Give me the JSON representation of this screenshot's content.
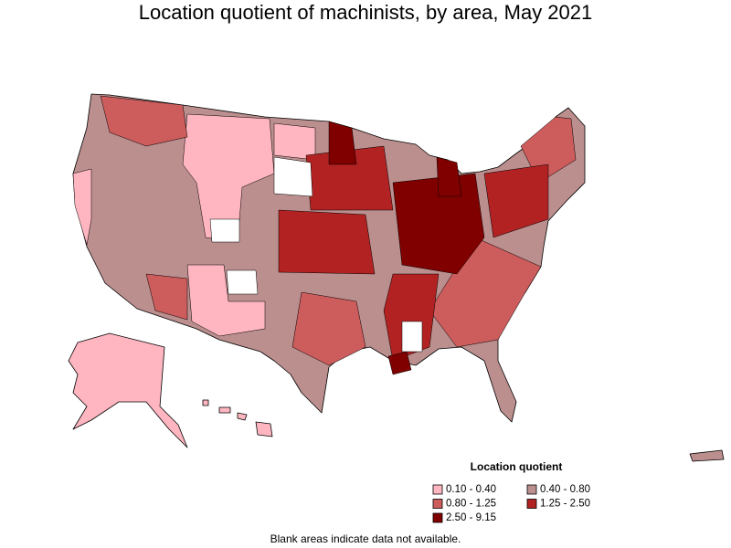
{
  "title": "Location quotient of machinists, by area, May 2021",
  "legend": {
    "title": "Location quotient",
    "entries": [
      {
        "label": "0.10 - 0.40",
        "color": "#ffb6c1"
      },
      {
        "label": "0.40 - 0.80",
        "color": "#bc8f8f"
      },
      {
        "label": "0.80 - 1.25",
        "color": "#cd5c5c"
      },
      {
        "label": "1.25 - 2.50",
        "color": "#b22222"
      },
      {
        "label": "2.50 - 9.15",
        "color": "#800000"
      }
    ]
  },
  "footnote": "Blank areas indicate data not available."
}
